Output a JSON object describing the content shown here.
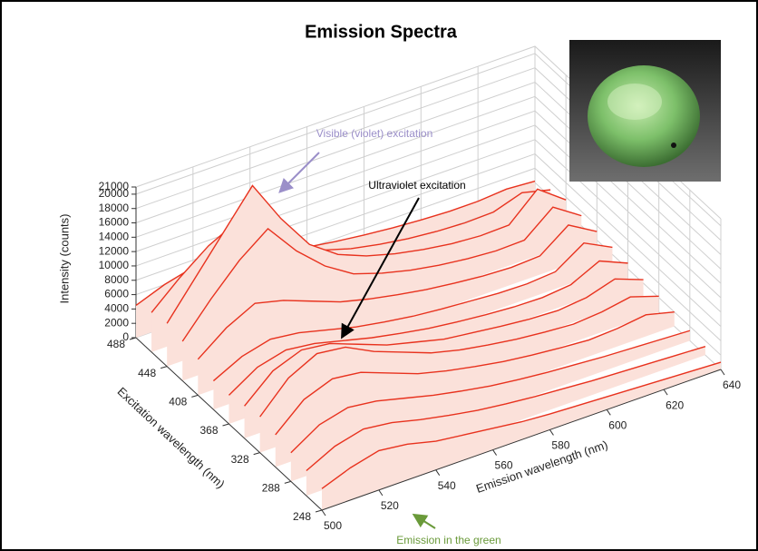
{
  "chart_data": {
    "type": "waterfall3d",
    "title": "Emission Spectra",
    "x_label": "Emission wavelength (nm)",
    "z_label": "Excitation wavelength (nm)",
    "y_label": "Intensity (counts)",
    "color": "#e8321e",
    "fill": "#fbe1da",
    "x": [
      500,
      510,
      520,
      530,
      540,
      550,
      560,
      570,
      580,
      590,
      600,
      610,
      620,
      630,
      640
    ],
    "series": [
      {
        "excitation": 488,
        "values": [
          4500,
          6000,
          7000,
          6500,
          6000,
          5000,
          4200,
          3600,
          3100,
          2700,
          2400,
          2200,
          2200,
          2500,
          2200
        ]
      },
      {
        "excitation": 468,
        "values": [
          5500,
          9000,
          12000,
          14000,
          10000,
          7500,
          5800,
          4600,
          3800,
          3200,
          2800,
          2600,
          2700,
          4000,
          3000
        ]
      },
      {
        "excitation": 448,
        "values": [
          6000,
          11000,
          16000,
          21000,
          15000,
          10000,
          7200,
          5600,
          4500,
          3700,
          3100,
          2800,
          2900,
          6500,
          3600
        ]
      },
      {
        "excitation": 428,
        "values": [
          5500,
          10000,
          14000,
          17000,
          12500,
          9000,
          6500,
          5200,
          4200,
          3500,
          3000,
          2700,
          2800,
          6000,
          3400
        ]
      },
      {
        "excitation": 408,
        "values": [
          5000,
          8000,
          10000,
          9000,
          7500,
          6000,
          5000,
          4200,
          3500,
          3000,
          2600,
          2400,
          2600,
          5500,
          3200
        ]
      },
      {
        "excitation": 388,
        "values": [
          4000,
          6000,
          7000,
          6500,
          5500,
          4500,
          3800,
          3200,
          2800,
          2500,
          2200,
          2100,
          2400,
          5000,
          3000
        ]
      },
      {
        "excitation": 368,
        "values": [
          4000,
          6500,
          7500,
          7000,
          6000,
          5000,
          4200,
          3500,
          3000,
          2600,
          2300,
          2200,
          2600,
          4500,
          2800
        ]
      },
      {
        "excitation": 348,
        "values": [
          4500,
          8000,
          9500,
          9000,
          7500,
          6000,
          5000,
          4000,
          3500,
          3000,
          2600,
          2400,
          2800,
          4000,
          2500
        ]
      },
      {
        "excitation": 328,
        "values": [
          5000,
          9000,
          11000,
          10500,
          8500,
          7000,
          5500,
          4500,
          3800,
          3200,
          2800,
          2500,
          2800,
          3500,
          2200
        ]
      },
      {
        "excitation": 308,
        "values": [
          4500,
          8000,
          9500,
          9000,
          7500,
          6000,
          5000,
          4200,
          3500,
          3000,
          2600,
          2300,
          2500,
          3000,
          2000
        ]
      },
      {
        "excitation": 288,
        "values": [
          4000,
          6500,
          7500,
          7000,
          6000,
          5000,
          4200,
          3500,
          3000,
          2600,
          2300,
          2000,
          1800,
          1600,
          1400
        ]
      },
      {
        "excitation": 268,
        "values": [
          3500,
          5500,
          6500,
          6000,
          5000,
          4200,
          3500,
          3000,
          2600,
          2300,
          2000,
          1800,
          1600,
          1400,
          1200
        ]
      },
      {
        "excitation": 248,
        "values": [
          3000,
          4500,
          5500,
          5000,
          4000,
          3500,
          3000,
          2500,
          2200,
          2000,
          1800,
          1600,
          1400,
          1200,
          1000
        ]
      }
    ],
    "xlim": [
      500,
      640
    ],
    "xticks": [
      500,
      520,
      540,
      560,
      580,
      600,
      620,
      640
    ],
    "zlim": [
      248,
      488
    ],
    "zticks": [
      248,
      288,
      328,
      368,
      408,
      448,
      488
    ],
    "ylim": [
      0,
      21000
    ],
    "yticks": [
      0,
      2000,
      4000,
      6000,
      8000,
      10000,
      12000,
      14000,
      16000,
      18000,
      20000,
      21000
    ],
    "grid": true,
    "annotations": [
      "Visible (violet) excitation",
      "Ultraviolet excitation",
      "Emission in the green"
    ]
  }
}
